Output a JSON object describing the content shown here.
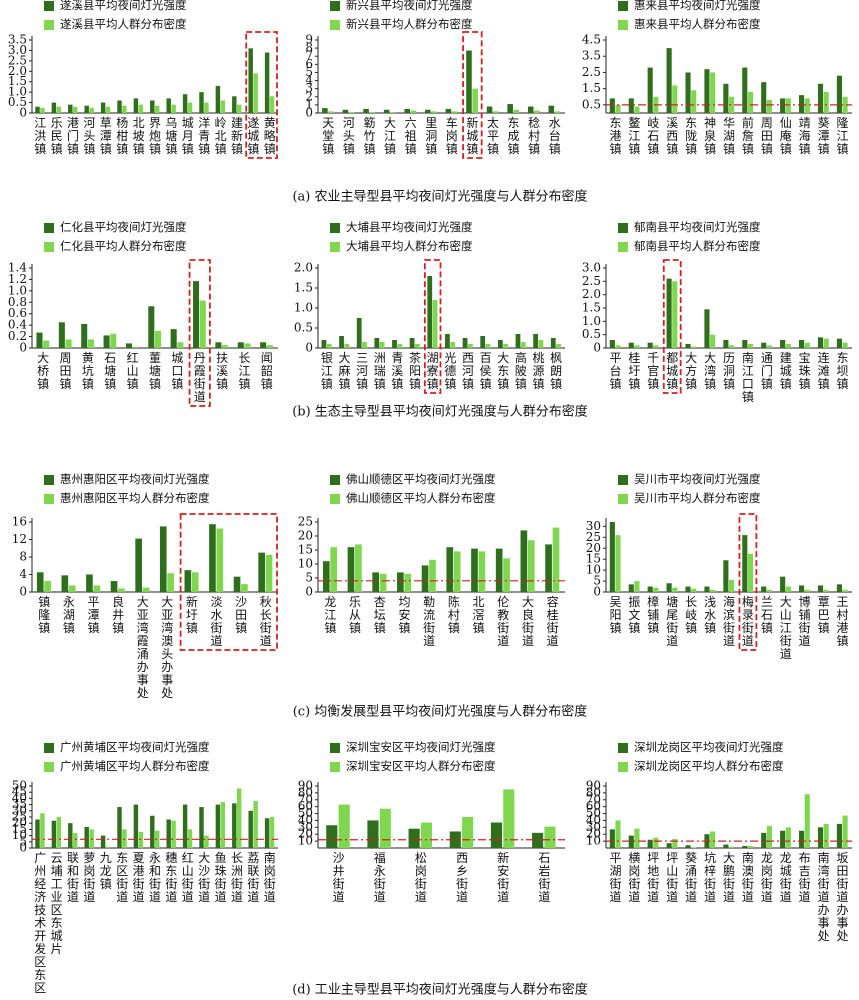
{
  "captions": [
    "(a) 农业主导型县平均夜间灯光强度与人群分布密度",
    "(b) 生态主导型县平均夜间灯光强度与人群分布密度",
    "(c) 均衡发展型县平均夜间灯光强度与人群分布密度",
    "(d) 工业主导型县平均夜间灯光强度与人群分布密度"
  ],
  "chart_data": [
    {
      "type": "bar",
      "categories": [
        "江洪镇",
        "乐民镇",
        "港门镇",
        "河头镇",
        "草潭镇",
        "杨柑镇",
        "北坡镇",
        "界炮镇",
        "乌塘镇",
        "城月镇",
        "洋青镇",
        "岭北镇",
        "建新镇",
        "遂城镇",
        "黄略镇"
      ],
      "series": [
        {
          "name": "遂溪县平均夜间灯光强度",
          "color": "#2f6e1c",
          "values": [
            0.3,
            0.5,
            0.4,
            0.35,
            0.5,
            0.6,
            0.7,
            0.6,
            0.7,
            0.9,
            1.0,
            1.3,
            0.8,
            3.1,
            2.9
          ]
        },
        {
          "name": "遂溪县平均人群分布密度",
          "color": "#7fd64f",
          "values": [
            0.25,
            0.3,
            0.3,
            0.25,
            0.3,
            0.35,
            0.4,
            0.35,
            0.4,
            0.5,
            0.5,
            0.6,
            0.4,
            1.9,
            0.8
          ]
        }
      ],
      "ylim": [
        0,
        3.5
      ],
      "yticks": [
        0,
        0.5,
        {
          "value": 1,
          "label": "1.0"
        },
        1.5,
        {
          "value": 2,
          "label": "2.0"
        },
        2.5,
        {
          "value": 3,
          "label": "3.0"
        },
        3.5
      ],
      "highlight": [
        13,
        14
      ]
    },
    {
      "type": "bar",
      "categories": [
        "天堂镇",
        "河头镇",
        "簕竹镇",
        "大江镇",
        "六祖镇",
        "里洞镇",
        "车岗镇",
        "新城镇",
        "太平镇",
        "东成镇",
        "稔村镇",
        "水台镇"
      ],
      "series": [
        {
          "name": "新兴县平均夜间灯光强度",
          "color": "#2f6e1c",
          "values": [
            0.6,
            0.4,
            0.5,
            0.4,
            0.5,
            0.4,
            0.5,
            7.7,
            0.8,
            1.1,
            0.8,
            0.9
          ]
        },
        {
          "name": "新兴县平均人群分布密度",
          "color": "#7fd64f",
          "values": [
            0.2,
            0.1,
            0.1,
            0.1,
            0.3,
            0.2,
            0.2,
            3.0,
            0.2,
            0.4,
            0.3,
            0.2
          ]
        }
      ],
      "ylim": [
        0,
        9
      ],
      "yticks": [
        0,
        1,
        2,
        3,
        4,
        5,
        6,
        7,
        8,
        9
      ],
      "highlight": [
        7
      ]
    },
    {
      "type": "bar",
      "categories": [
        "东港镇",
        "鳌江镇",
        "岐石镇",
        "溪西镇",
        "东陇镇",
        "神泉镇",
        "华湖镇",
        "前詹镇",
        "周田镇",
        "仙庵镇",
        "靖海镇",
        "葵潭镇",
        "隆江镇"
      ],
      "series": [
        {
          "name": "惠来县平均夜间灯光强度",
          "color": "#2f6e1c",
          "values": [
            0.9,
            0.9,
            2.8,
            4.0,
            2.5,
            2.7,
            1.8,
            2.8,
            1.9,
            0.9,
            1.1,
            1.8,
            2.3
          ]
        },
        {
          "name": "惠来县平均人群分布密度",
          "color": "#7fd64f",
          "values": [
            0.5,
            0.4,
            1.0,
            1.7,
            1.4,
            2.5,
            1.0,
            1.3,
            0.8,
            0.9,
            0.9,
            1.3,
            1.0
          ]
        }
      ],
      "ylim": [
        0,
        4.5
      ],
      "yticks": [
        0.5,
        1.5,
        2.5,
        3.5,
        4.5
      ],
      "reference_line": 0.5
    },
    {
      "type": "bar",
      "categories": [
        "大桥镇",
        "周田镇",
        "黄坑镇",
        "石塘镇",
        "红山镇",
        "董塘镇",
        "城口镇",
        "丹霞街道",
        "扶溪镇",
        "长江镇",
        "闻韶镇"
      ],
      "series": [
        {
          "name": "仁化县平均夜间灯光强度",
          "color": "#2f6e1c",
          "values": [
            0.27,
            0.45,
            0.42,
            0.22,
            0.08,
            0.73,
            0.33,
            1.17,
            0.1,
            0.1,
            0.1
          ]
        },
        {
          "name": "仁化县平均人群分布密度",
          "color": "#7fd64f",
          "values": [
            0.13,
            0.15,
            0.15,
            0.25,
            0.02,
            0.3,
            0.1,
            0.83,
            0.05,
            0.08,
            0.05
          ]
        }
      ],
      "ylim": [
        0,
        1.4
      ],
      "yticks": [
        0,
        0.2,
        0.4,
        0.6,
        0.8,
        {
          "value": 1,
          "label": "1.0"
        },
        1.2,
        1.4
      ],
      "highlight": [
        7
      ]
    },
    {
      "type": "bar",
      "categories": [
        "银江镇",
        "大麻镇",
        "三河镇",
        "洲瑞镇",
        "青溪镇",
        "茶阳镇",
        "湖寮镇",
        "光德镇",
        "西河镇",
        "百侯镇",
        "大东镇",
        "高陂镇",
        "桃源镇",
        "枫朗镇"
      ],
      "series": [
        {
          "name": "大埔县平均夜间灯光强度",
          "color": "#2f6e1c",
          "values": [
            0.2,
            0.3,
            0.75,
            0.25,
            0.2,
            0.25,
            1.8,
            0.35,
            0.25,
            0.3,
            0.2,
            0.35,
            0.35,
            0.25
          ]
        },
        {
          "name": "大埔县平均人群分布密度",
          "color": "#7fd64f",
          "values": [
            0.1,
            0.1,
            0.15,
            0.15,
            0.1,
            0.1,
            1.2,
            0.15,
            0.1,
            0.1,
            0.1,
            0.15,
            0.2,
            0.1
          ]
        }
      ],
      "ylim": [
        0,
        2
      ],
      "yticks": [
        0,
        0.5,
        {
          "value": 1,
          "label": "1.0"
        },
        1.5,
        {
          "value": 2,
          "label": "2.0"
        }
      ],
      "highlight": [
        6
      ]
    },
    {
      "type": "bar",
      "categories": [
        "平台镇",
        "桂圩镇",
        "千官镇",
        "都城镇",
        "大方镇",
        "大湾镇",
        "历洞镇",
        "南江口镇",
        "通门镇",
        "建城镇",
        "宝珠镇",
        "连滩镇",
        "东坝镇"
      ],
      "series": [
        {
          "name": "郁南县平均夜间灯光强度",
          "color": "#2f6e1c",
          "values": [
            0.3,
            0.2,
            0.2,
            2.6,
            0.15,
            1.45,
            0.3,
            0.3,
            0.2,
            0.3,
            0.3,
            0.4,
            0.35
          ]
        },
        {
          "name": "郁南县平均人群分布密度",
          "color": "#7fd64f",
          "values": [
            0.1,
            0.1,
            0.1,
            2.5,
            0.05,
            0.5,
            0.1,
            0.15,
            0.1,
            0.15,
            0.2,
            0.35,
            0.2
          ]
        }
      ],
      "ylim": [
        0,
        3
      ],
      "yticks": [
        0,
        0.5,
        {
          "value": 1,
          "label": "1.0"
        },
        1.5,
        {
          "value": 2,
          "label": "2.0"
        },
        2.5,
        {
          "value": 3,
          "label": "3.0"
        }
      ],
      "highlight": [
        3
      ]
    },
    {
      "type": "bar",
      "categories": [
        "镇隆镇",
        "永湖镇",
        "平潭镇",
        "良井镇",
        "大亚湾霞涌办事处",
        "大亚湾澳头办事处",
        "新圩镇",
        "淡水街道",
        "沙田镇",
        "秋长街道"
      ],
      "series": [
        {
          "name": "惠州惠阳区平均夜间灯光强度",
          "color": "#2f6e1c",
          "values": [
            4.5,
            3.8,
            4,
            2.5,
            12.2,
            15,
            5,
            15.5,
            3.5,
            9
          ]
        },
        {
          "name": "惠州惠阳区平均人群分布密度",
          "color": "#7fd64f",
          "values": [
            2.5,
            1.5,
            1.5,
            0.8,
            1,
            4.3,
            4.5,
            14.5,
            1.8,
            8.5
          ]
        }
      ],
      "ylim": [
        0,
        16
      ],
      "yticks": [
        0,
        4,
        8,
        12,
        16
      ],
      "highlight": [
        6,
        7,
        8,
        9
      ]
    },
    {
      "type": "bar",
      "categories": [
        "龙江镇",
        "乐从镇",
        "杏坛镇",
        "均安镇",
        "勒流街道",
        "陈村镇",
        "北滘镇",
        "伦教街道",
        "大良街道",
        "容桂街道"
      ],
      "series": [
        {
          "name": "佛山顺德区平均夜间灯光强度",
          "color": "#2f6e1c",
          "values": [
            11,
            16,
            7,
            7,
            9.5,
            16,
            15.5,
            15.5,
            22,
            17
          ]
        },
        {
          "name": "佛山顺德区平均人群分布密度",
          "color": "#7fd64f",
          "values": [
            16,
            17,
            6.5,
            6.5,
            11.5,
            14.5,
            14.5,
            12,
            18.5,
            23
          ]
        }
      ],
      "ylim": [
        0,
        25
      ],
      "yticks": [
        0,
        5,
        10,
        15,
        20,
        25
      ],
      "reference_line": 4
    },
    {
      "type": "bar",
      "categories": [
        "吴阳镇",
        "振文镇",
        "樟铺镇",
        "塘尾街道",
        "长岐镇",
        "浅水镇",
        "海滨街道",
        "梅录街道",
        "兰石镇",
        "大山江街道",
        "博铺街道",
        "覃巴镇",
        "王村港镇"
      ],
      "series": [
        {
          "name": "吴川市平均夜间灯光强度",
          "color": "#2f6e1c",
          "values": [
            32,
            3.5,
            2.5,
            4,
            2.5,
            2.5,
            14.5,
            26,
            2.5,
            7,
            3,
            3,
            3.5
          ]
        },
        {
          "name": "吴川市平均人群分布密度",
          "color": "#7fd64f",
          "values": [
            26,
            5,
            2,
            2,
            1.5,
            1,
            5.5,
            17.5,
            1,
            2.5,
            1,
            1,
            1
          ]
        }
      ],
      "ylim": [
        0,
        32
      ],
      "yticks": [
        0,
        5,
        10,
        15,
        20,
        25,
        30
      ],
      "highlight": [
        7
      ]
    },
    {
      "type": "bar",
      "categories": [
        "广州经济技术开发区东区",
        "云埔工业区东城片",
        "联和街道",
        "萝岗街道",
        "九龙镇",
        "东区街道",
        "夏港街道",
        "永和街道",
        "穗东街道",
        "红山街道",
        "大沙街道",
        "鱼珠街道",
        "长洲街道",
        "荔联街道",
        "南岗街道"
      ],
      "series": [
        {
          "name": "广州黄埔区平均夜间灯光强度",
          "color": "#2f6e1c",
          "values": [
            23,
            22,
            20,
            17,
            10,
            33,
            35,
            26,
            23,
            35,
            33,
            35,
            36,
            30,
            24
          ]
        },
        {
          "name": "广州黄埔区平均人群分布密度",
          "color": "#7fd64f",
          "values": [
            28,
            25,
            12,
            15,
            1,
            15,
            13,
            14,
            22,
            15,
            10,
            37,
            48,
            38,
            25
          ]
        }
      ],
      "ylim": [
        0,
        50
      ],
      "yticks": [
        0,
        5,
        10,
        15,
        20,
        25,
        30,
        35,
        40,
        45,
        50
      ],
      "reference_line": 7
    },
    {
      "type": "bar",
      "categories": [
        "沙井街道",
        "福永街道",
        "松岗街道",
        "西乡街道",
        "新安街道",
        "石岩街道"
      ],
      "series": [
        {
          "name": "深圳宝安区平均夜间灯光强度",
          "color": "#2f6e1c",
          "values": [
            33,
            40,
            28,
            24,
            37,
            22
          ]
        },
        {
          "name": "深圳宝安区平均人群分布密度",
          "color": "#7fd64f",
          "values": [
            63,
            57,
            37,
            45,
            85,
            31
          ]
        }
      ],
      "ylim": [
        0,
        90
      ],
      "yticks": [
        10,
        20,
        30,
        40,
        50,
        60,
        70,
        80,
        90
      ],
      "reference_line": 12
    },
    {
      "type": "bar",
      "categories": [
        "平湖街道",
        "横岗街道",
        "坪地街道",
        "坪山街道",
        "葵涌街道",
        "坑梓街道",
        "大鹏街道",
        "南澳街道",
        "龙岗街道",
        "龙城街道",
        "布吉街道",
        "南湾街道办事处",
        "坂田街道办事处"
      ],
      "series": [
        {
          "name": "深圳龙岗区平均夜间灯光强度",
          "color": "#2f6e1c",
          "values": [
            27,
            18,
            12,
            7,
            4,
            20,
            5,
            3,
            22,
            25,
            25,
            30,
            35
          ]
        },
        {
          "name": "深圳龙岗区平均人群分布密度",
          "color": "#7fd64f",
          "values": [
            40,
            28,
            15,
            13,
            1,
            24,
            2,
            3,
            32,
            30,
            78,
            35,
            47
          ]
        }
      ],
      "ylim": [
        0,
        90
      ],
      "yticks": [
        10,
        20,
        30,
        40,
        50,
        60,
        70,
        80,
        90
      ],
      "reference_line": 10
    }
  ]
}
